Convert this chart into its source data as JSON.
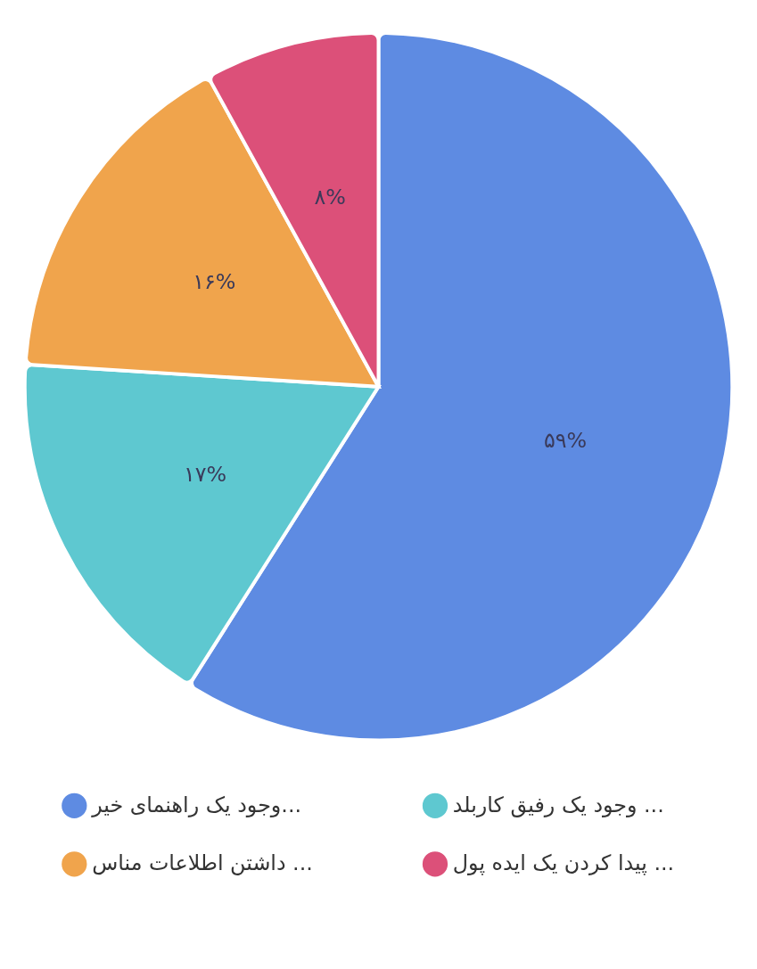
{
  "chart_data": {
    "type": "pie",
    "categories": [
      "وجود یک راهنمای خیر...",
      "وجود یک رفیق کاربلد ...",
      "داشتن اطلاعات مناس ...",
      "پیدا کردن یک ایده پول ..."
    ],
    "values": [
      59,
      17,
      16,
      8
    ],
    "colors": [
      "#5e8be2",
      "#5ec8d0",
      "#f0a44c",
      "#dc5079"
    ],
    "value_labels": [
      "۵۹%",
      "۱۷%",
      "۱۶%",
      "۸%"
    ],
    "legend": "bottom"
  }
}
